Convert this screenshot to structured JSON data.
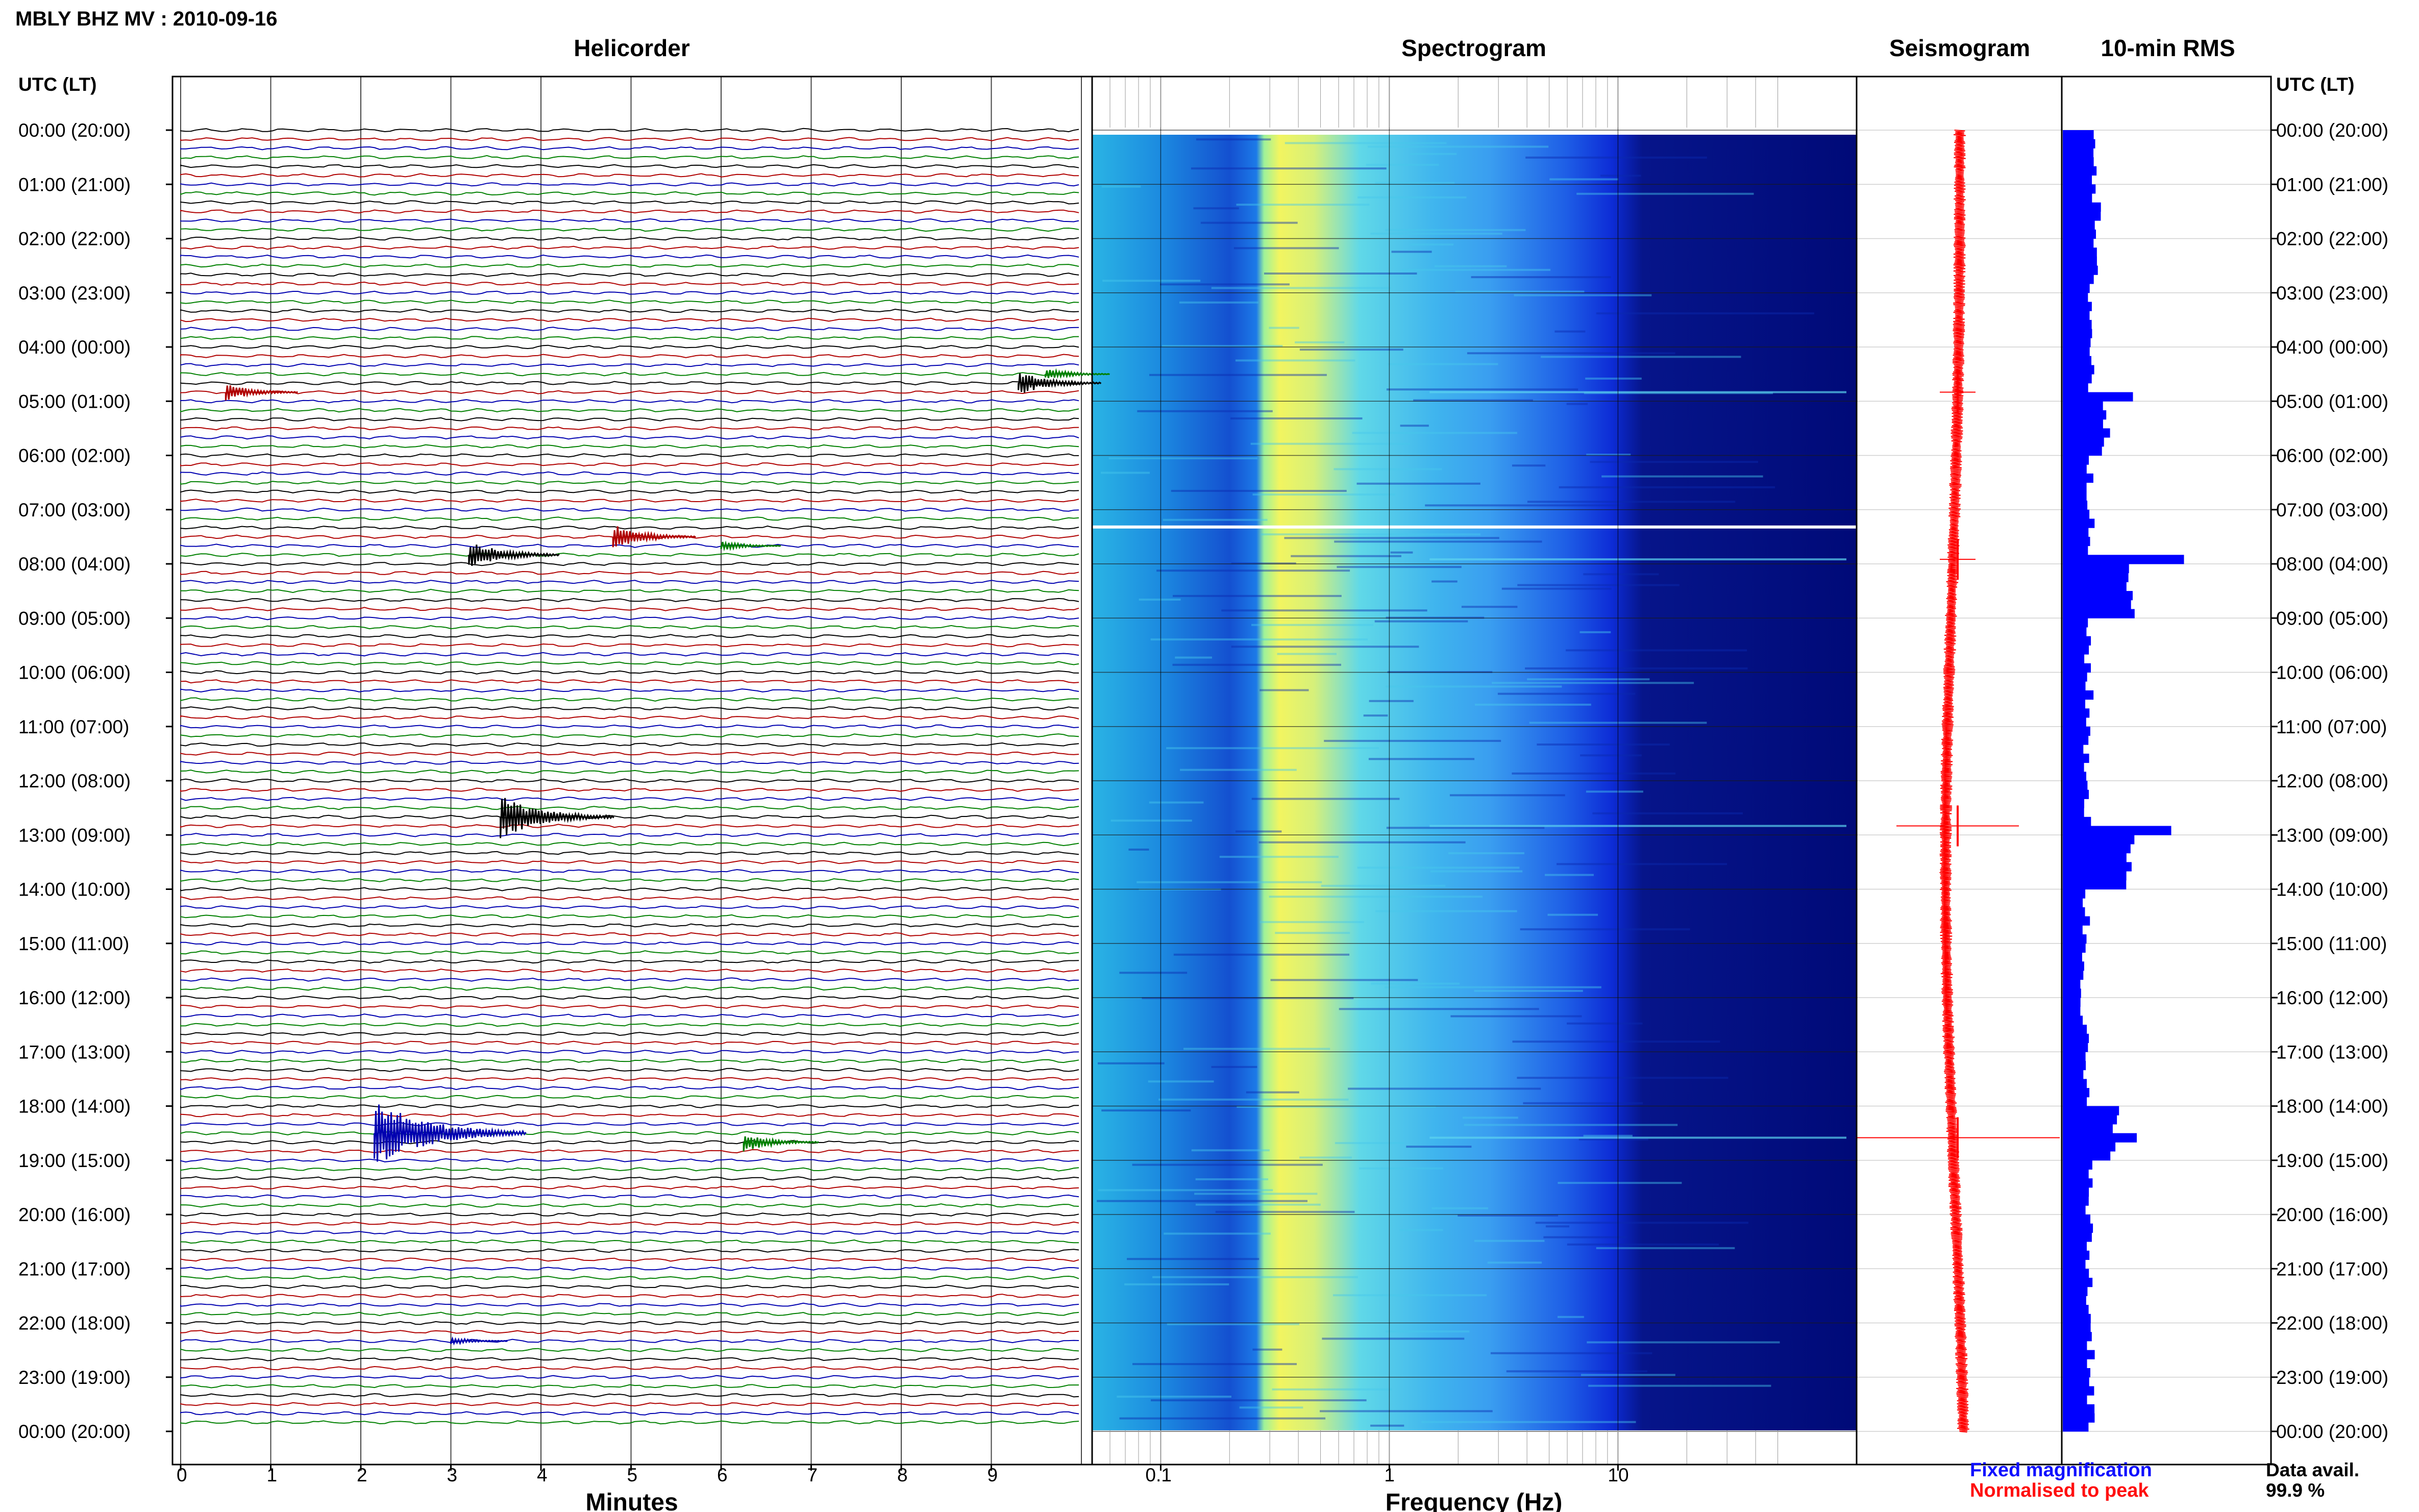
{
  "header": {
    "title": "MBLY BHZ MV : 2010-09-16"
  },
  "panels": {
    "helicorder": "Helicorder",
    "spectrogram": "Spectrogram",
    "seismogram": "Seismogram",
    "rms": "10-min RMS"
  },
  "axes": {
    "time_header_left": "UTC (LT)",
    "time_header_right": "UTC (LT)",
    "time_labels": [
      "00:00 (20:00)",
      "01:00 (21:00)",
      "02:00 (22:00)",
      "03:00 (23:00)",
      "04:00 (00:00)",
      "05:00 (01:00)",
      "06:00 (02:00)",
      "07:00 (03:00)",
      "08:00 (04:00)",
      "09:00 (05:00)",
      "10:00 (06:00)",
      "11:00 (07:00)",
      "12:00 (08:00)",
      "13:00 (09:00)",
      "14:00 (10:00)",
      "15:00 (11:00)",
      "16:00 (12:00)",
      "17:00 (13:00)",
      "18:00 (14:00)",
      "19:00 (15:00)",
      "20:00 (16:00)",
      "21:00 (17:00)",
      "22:00 (18:00)",
      "23:00 (19:00)",
      "00:00 (20:00)"
    ],
    "minutes_ticks": [
      "0",
      "1",
      "2",
      "3",
      "4",
      "5",
      "6",
      "7",
      "8",
      "9"
    ],
    "minutes_label": "Minutes",
    "freq_ticks": [
      "0.1",
      "1",
      "10"
    ],
    "freq_label": "Frequency (Hz)"
  },
  "legend": {
    "fixed": "Fixed magnification",
    "normalised": "Normalised to peak"
  },
  "availability": {
    "label": "Data avail.",
    "value": "99.9 %"
  },
  "colors": {
    "helicorder_traces": [
      "#000000",
      "#b00000",
      "#0000b0",
      "#008000"
    ],
    "seismogram": "#ff0000",
    "rms": "#0000ff"
  },
  "chart_data": {
    "type": "heatmap",
    "station": "MBLY BHZ MV",
    "date": "2010-09-16",
    "helicorder": {
      "x_label": "Minutes",
      "x_range": [
        0,
        10
      ],
      "lines_per_hour": 6,
      "hours": 24,
      "events": [
        {
          "utc": "04:50",
          "minute": 0.5,
          "amp": 0.35,
          "color": "#b00000"
        },
        {
          "utc": "04:40",
          "minute": 9.3,
          "amp": 0.5,
          "color": "#000000"
        },
        {
          "utc": "04:30",
          "minute": 9.6,
          "amp": 0.25,
          "color": "#008000"
        },
        {
          "utc": "07:30",
          "minute": 4.8,
          "amp": 0.5,
          "color": "#b00000"
        },
        {
          "utc": "07:50",
          "minute": 3.2,
          "amp": 0.6,
          "color": "#000000"
        },
        {
          "utc": "07:40",
          "minute": 6.0,
          "amp": 0.2,
          "color": "#008000"
        },
        {
          "utc": "12:40",
          "minute": 3.55,
          "amp": 0.9,
          "color": "#000000"
        },
        {
          "utc": "18:30",
          "minute": 2.15,
          "amp": 1.4,
          "color": "#0000b0"
        },
        {
          "utc": "18:40",
          "minute": 6.25,
          "amp": 0.4,
          "color": "#008000"
        },
        {
          "utc": "22:20",
          "minute": 3.0,
          "amp": 0.15,
          "color": "#0000b0"
        }
      ]
    },
    "spectrogram": {
      "x_label": "Frequency (Hz)",
      "x_scale": "log",
      "x_range": [
        0.02,
        50
      ],
      "peak_band_hz": [
        0.12,
        0.25
      ],
      "microseism_band_hz": [
        0.1,
        1.0
      ],
      "noise_floor_above_hz": 4
    },
    "seismogram": {
      "color": "#ff0000",
      "events_utc": [
        "04:50",
        "07:55",
        "12:50",
        "18:35"
      ]
    },
    "rms": {
      "interval_min": 10,
      "color": "#0000ff",
      "hourly_relative": [
        0.35,
        0.35,
        0.32,
        0.3,
        0.3,
        0.45,
        0.3,
        0.28,
        0.7,
        0.27,
        0.27,
        0.26,
        0.26,
        0.7,
        0.24,
        0.23,
        0.23,
        0.23,
        0.55,
        0.27,
        0.27,
        0.28,
        0.3,
        0.3
      ],
      "peaks": [
        {
          "utc": "04:50",
          "value": 0.55
        },
        {
          "utc": "07:50",
          "value": 0.95
        },
        {
          "utc": "12:50",
          "value": 0.85
        },
        {
          "utc": "18:30",
          "value": 0.58
        }
      ]
    }
  }
}
